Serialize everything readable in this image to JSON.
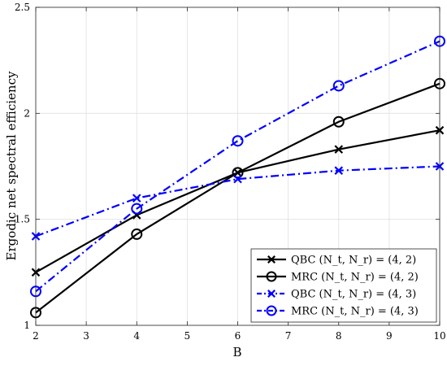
{
  "chart_data": {
    "type": "line",
    "xlabel": "B",
    "ylabel": "Ergodic net spectral efficiency",
    "x": [
      2,
      4,
      6,
      8,
      10
    ],
    "xlim": [
      2,
      10
    ],
    "ylim": [
      1,
      2.5
    ],
    "xticks": [
      2,
      3,
      4,
      5,
      6,
      7,
      8,
      9,
      10
    ],
    "yticks": [
      1,
      1.5,
      2,
      2.5
    ],
    "xtick_labels": [
      "2",
      "3",
      "4",
      "5",
      "6",
      "7",
      "8",
      "9",
      "10"
    ],
    "ytick_labels": [
      "1",
      "1.5",
      "2",
      "2.5"
    ],
    "grid": true,
    "legend_position": "bottom-right",
    "series": [
      {
        "legend_prefix": "QBC",
        "legend_math": "(N_t, N_r) = (4, 2)",
        "values": [
          1.25,
          1.52,
          1.72,
          1.83,
          1.92
        ],
        "color": "#000000",
        "marker": "x",
        "dash": "solid"
      },
      {
        "legend_prefix": "MRC",
        "legend_math": "(N_t, N_r) = (4, 2)",
        "values": [
          1.06,
          1.43,
          1.72,
          1.96,
          2.14
        ],
        "color": "#000000",
        "marker": "o",
        "dash": "solid"
      },
      {
        "legend_prefix": "QBC",
        "legend_math": "(N_t, N_r) = (4, 3)",
        "values": [
          1.42,
          1.6,
          1.69,
          1.73,
          1.75
        ],
        "color": "#0000ff",
        "marker": "x",
        "dash": "dashdot"
      },
      {
        "legend_prefix": "MRC",
        "legend_math": "(N_t, N_r) = (4, 3)",
        "values": [
          1.16,
          1.55,
          1.87,
          2.13,
          2.34
        ],
        "color": "#0000ff",
        "marker": "o",
        "dash": "dashdot"
      }
    ]
  }
}
